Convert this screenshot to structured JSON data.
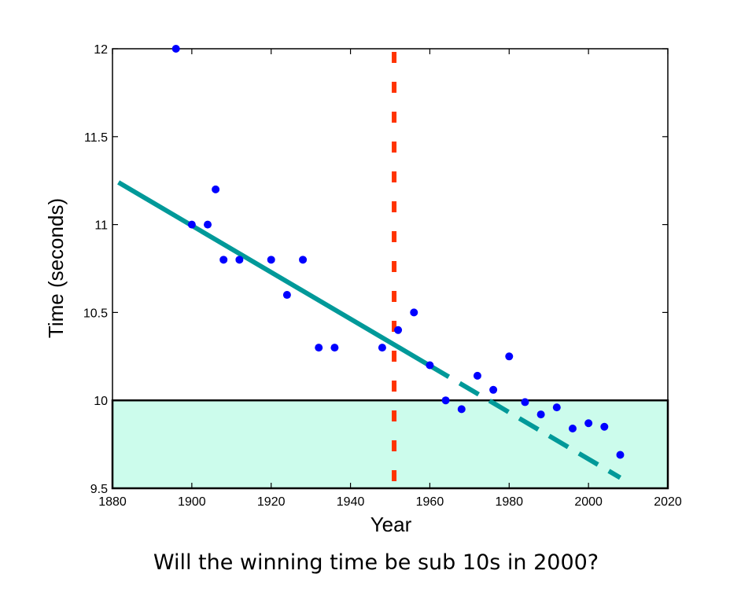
{
  "chart_data": {
    "type": "scatter",
    "xlabel": "Year",
    "ylabel": "Time (seconds)",
    "xlim": [
      1880,
      2020
    ],
    "ylim": [
      9.5,
      12
    ],
    "x_ticks": [
      1880,
      1900,
      1920,
      1940,
      1960,
      1980,
      2000,
      2020
    ],
    "y_ticks": [
      9.5,
      10,
      10.5,
      11,
      11.5,
      12
    ],
    "y_tick_labels": [
      "9.5",
      "10",
      "10.5",
      "11",
      "11.5",
      "12"
    ],
    "grid": false,
    "legend": "none",
    "points": {
      "x": [
        1896,
        1900,
        1904,
        1906,
        1908,
        1912,
        1920,
        1924,
        1928,
        1932,
        1936,
        1948,
        1952,
        1956,
        1960,
        1964,
        1968,
        1972,
        1976,
        1980,
        1984,
        1988,
        1992,
        1996,
        2000,
        2004,
        2008
      ],
      "y": [
        12.0,
        11.0,
        11.0,
        11.2,
        10.8,
        10.8,
        10.8,
        10.6,
        10.8,
        10.3,
        10.3,
        10.3,
        10.4,
        10.5,
        10.2,
        10.0,
        9.95,
        10.14,
        10.06,
        10.25,
        9.99,
        9.92,
        9.96,
        9.84,
        9.87,
        9.85,
        9.69
      ],
      "color": "#0000ff"
    },
    "fit_line": {
      "x": [
        1881.5,
        2008
      ],
      "y": [
        11.24,
        9.56
      ],
      "split_x": 1960,
      "color": "#009999"
    },
    "vertical_reference": {
      "x": 1951,
      "color": "#ff3300"
    },
    "shaded_region": {
      "y_from": 9.5,
      "y_to": 10,
      "color": "#ccfcec"
    }
  },
  "caption": "Will the winning time be sub 10s in 2000?"
}
